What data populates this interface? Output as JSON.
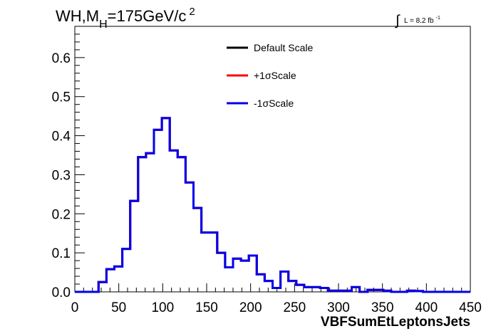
{
  "chart_data": {
    "type": "line",
    "title_main": "WH,M",
    "title_sub": "H",
    "title_rest": "=175GeV/c",
    "title_sup": "2",
    "lumi_label": "L = 8.2 fb",
    "lumi_sup": "-1",
    "xlabel": "VBFSumEtLeptonsJets",
    "ylabel": "",
    "xlim": [
      0,
      450
    ],
    "ylim": [
      0,
      0.68
    ],
    "x_ticks": [
      0,
      50,
      100,
      150,
      200,
      250,
      300,
      350,
      400,
      450
    ],
    "y_ticks": [
      0.0,
      0.1,
      0.2,
      0.3,
      0.4,
      0.5,
      0.6
    ],
    "y_tick_labels": [
      "0.0",
      "0.1",
      "0.2",
      "0.3",
      "0.4",
      "0.5",
      "0.6"
    ],
    "x_tick_labels": [
      "0",
      "50",
      "100",
      "150",
      "200",
      "250",
      "300",
      "350",
      "400",
      "450"
    ],
    "legend_position": "top-right",
    "grid": false,
    "bin_width": 9,
    "bin_edges_start": 0,
    "series": [
      {
        "name": "Default Scale",
        "color": "#000000",
        "values": [
          0,
          0,
          0,
          0.025,
          0.058,
          0.065,
          0.11,
          0.233,
          0.345,
          0.355,
          0.415,
          0.445,
          0.362,
          0.345,
          0.28,
          0.215,
          0.152,
          0.152,
          0.1,
          0.063,
          0.085,
          0.08,
          0.093,
          0.045,
          0.028,
          0.01,
          0.052,
          0.028,
          0.018,
          0.012,
          0.012,
          0.01,
          0.003,
          0.003,
          0.003,
          0.012,
          0.0,
          0.005,
          0.005,
          0.003,
          0.0,
          0.0,
          0.003,
          0.002,
          0.0,
          0.0,
          0.0,
          0.0,
          0.0,
          0.0
        ]
      },
      {
        "name": "+1σScale",
        "color": "#ff0000",
        "values": [
          0,
          0,
          0,
          0.025,
          0.058,
          0.065,
          0.11,
          0.233,
          0.345,
          0.355,
          0.415,
          0.445,
          0.362,
          0.345,
          0.28,
          0.215,
          0.152,
          0.152,
          0.1,
          0.063,
          0.085,
          0.08,
          0.093,
          0.045,
          0.028,
          0.01,
          0.052,
          0.028,
          0.018,
          0.012,
          0.012,
          0.01,
          0.003,
          0.003,
          0.003,
          0.012,
          0.0,
          0.005,
          0.005,
          0.003,
          0.0,
          0.0,
          0.003,
          0.002,
          0.0,
          0.0,
          0.0,
          0.0,
          0.0,
          0.0
        ]
      },
      {
        "name": "-1σScale",
        "color": "#0000ee",
        "values": [
          0,
          0,
          0,
          0.025,
          0.058,
          0.065,
          0.11,
          0.233,
          0.345,
          0.355,
          0.415,
          0.445,
          0.362,
          0.345,
          0.28,
          0.215,
          0.152,
          0.152,
          0.1,
          0.063,
          0.085,
          0.08,
          0.093,
          0.045,
          0.028,
          0.01,
          0.052,
          0.028,
          0.018,
          0.012,
          0.012,
          0.01,
          0.003,
          0.003,
          0.003,
          0.012,
          0.0,
          0.005,
          0.005,
          0.003,
          0.0,
          0.0,
          0.003,
          0.002,
          0.0,
          0.0,
          0.0,
          0.0,
          0.0,
          0.0
        ]
      }
    ]
  }
}
